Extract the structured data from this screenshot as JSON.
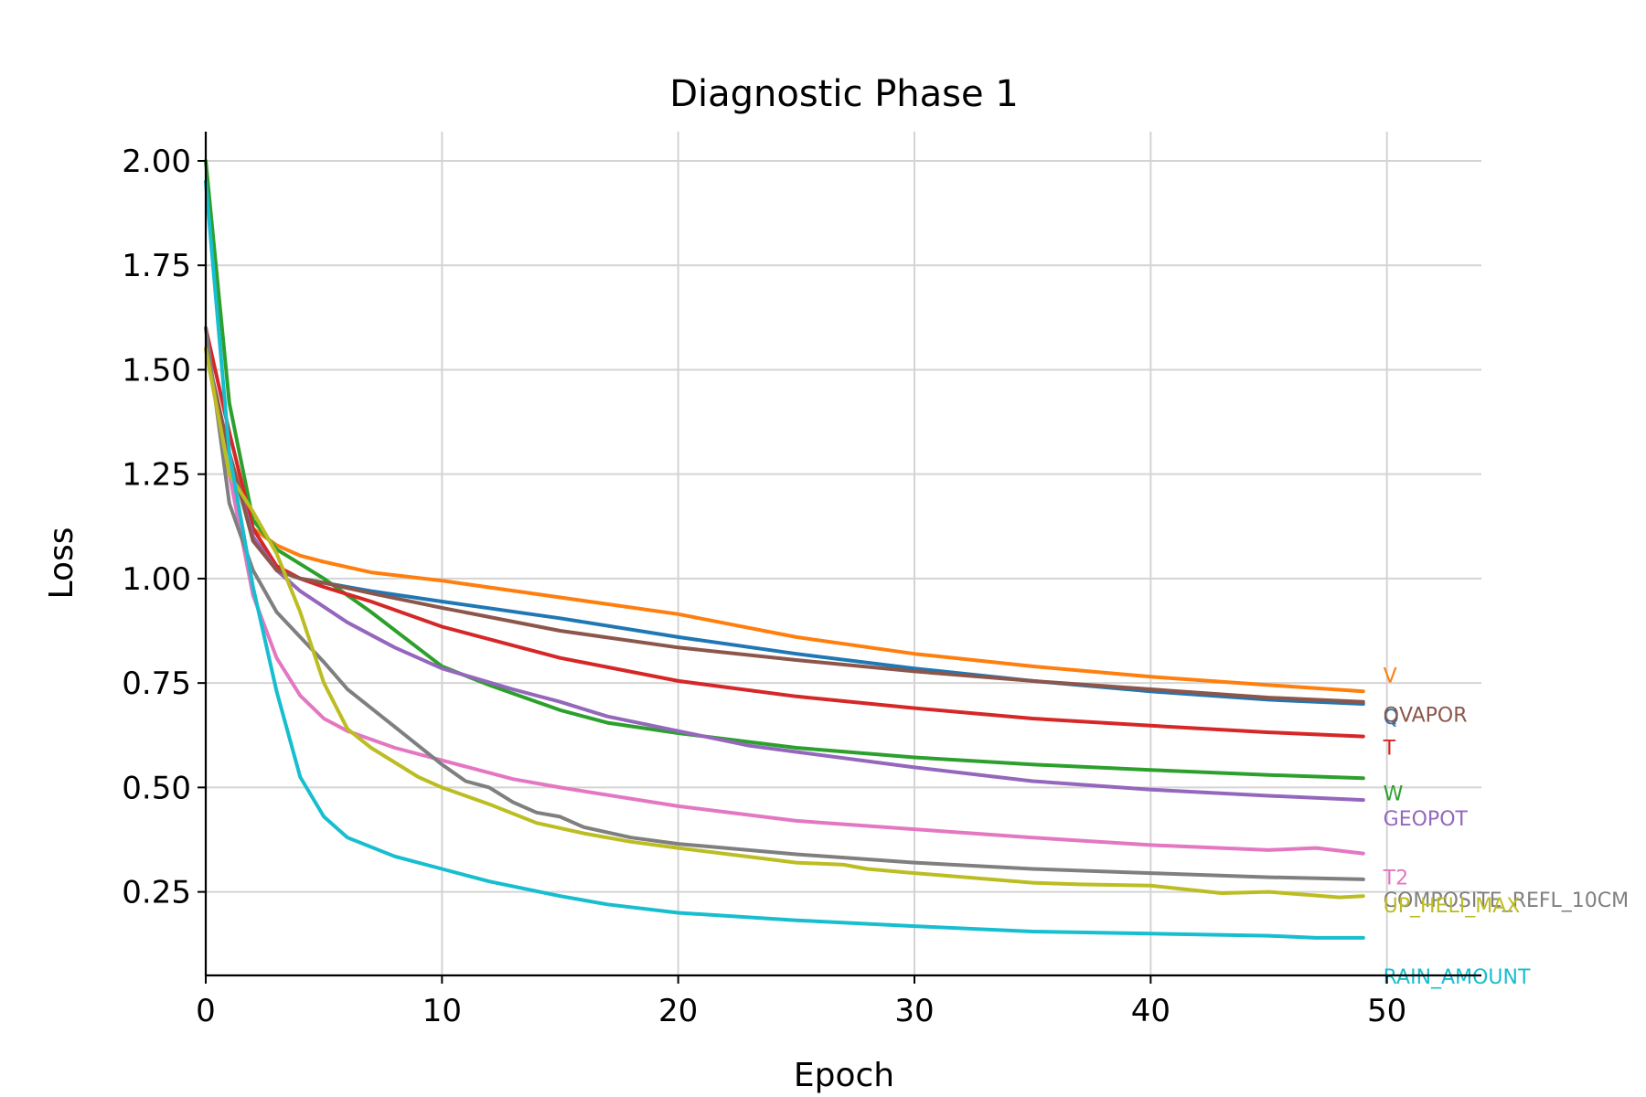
{
  "chart_data": {
    "type": "line",
    "title": "Diagnostic Phase 1",
    "xlabel": "Epoch",
    "ylabel": "Loss",
    "xlim": [
      0,
      54
    ],
    "ylim": [
      0.05,
      2.07
    ],
    "xticks": [
      0,
      10,
      20,
      30,
      40,
      50
    ],
    "xtick_labels": [
      "0",
      "10",
      "20",
      "30",
      "40",
      "50"
    ],
    "yticks": [
      0.25,
      0.5,
      0.75,
      1.0,
      1.25,
      1.5,
      1.75,
      2.0
    ],
    "ytick_labels": [
      "0.25",
      "0.50",
      "0.75",
      "1.00",
      "1.25",
      "1.50",
      "1.75",
      "2.00"
    ],
    "grid": true,
    "legend": "end-of-line labels",
    "series": [
      {
        "name": "Q",
        "color": "#1f77b4",
        "anchors": [
          [
            0,
            1.55
          ],
          [
            1,
            1.3
          ],
          [
            2,
            1.1
          ],
          [
            3,
            1.02
          ],
          [
            4,
            1.0
          ],
          [
            5,
            0.99
          ],
          [
            7,
            0.97
          ],
          [
            10,
            0.945
          ],
          [
            15,
            0.905
          ],
          [
            20,
            0.86
          ],
          [
            25,
            0.82
          ],
          [
            30,
            0.785
          ],
          [
            35,
            0.755
          ],
          [
            40,
            0.73
          ],
          [
            45,
            0.71
          ],
          [
            49,
            0.7
          ]
        ]
      },
      {
        "name": "V",
        "color": "#ff7f0e",
        "anchors": [
          [
            0,
            1.55
          ],
          [
            1,
            1.3
          ],
          [
            2,
            1.12
          ],
          [
            3,
            1.08
          ],
          [
            4,
            1.055
          ],
          [
            5,
            1.04
          ],
          [
            7,
            1.015
          ],
          [
            10,
            0.995
          ],
          [
            15,
            0.955
          ],
          [
            20,
            0.915
          ],
          [
            25,
            0.86
          ],
          [
            30,
            0.82
          ],
          [
            35,
            0.79
          ],
          [
            40,
            0.765
          ],
          [
            45,
            0.745
          ],
          [
            49,
            0.73
          ]
        ]
      },
      {
        "name": "W",
        "color": "#2ca02c",
        "anchors": [
          [
            0,
            2.0
          ],
          [
            1,
            1.42
          ],
          [
            2,
            1.14
          ],
          [
            3,
            1.07
          ],
          [
            5,
            1.0
          ],
          [
            7,
            0.92
          ],
          [
            10,
            0.79
          ],
          [
            12,
            0.745
          ],
          [
            15,
            0.685
          ],
          [
            17,
            0.655
          ],
          [
            20,
            0.63
          ],
          [
            25,
            0.595
          ],
          [
            30,
            0.572
          ],
          [
            35,
            0.555
          ],
          [
            40,
            0.542
          ],
          [
            45,
            0.53
          ],
          [
            49,
            0.522
          ]
        ]
      },
      {
        "name": "T",
        "color": "#d62728",
        "anchors": [
          [
            0,
            1.6
          ],
          [
            1,
            1.35
          ],
          [
            2,
            1.12
          ],
          [
            3,
            1.03
          ],
          [
            4,
            1.0
          ],
          [
            5,
            0.98
          ],
          [
            7,
            0.945
          ],
          [
            10,
            0.885
          ],
          [
            15,
            0.81
          ],
          [
            20,
            0.755
          ],
          [
            25,
            0.718
          ],
          [
            30,
            0.69
          ],
          [
            35,
            0.665
          ],
          [
            40,
            0.648
          ],
          [
            45,
            0.632
          ],
          [
            49,
            0.622
          ]
        ]
      },
      {
        "name": "GEOPOT",
        "color": "#9467bd",
        "anchors": [
          [
            0,
            1.55
          ],
          [
            1,
            1.3
          ],
          [
            2,
            1.1
          ],
          [
            3,
            1.02
          ],
          [
            4,
            0.97
          ],
          [
            6,
            0.895
          ],
          [
            8,
            0.835
          ],
          [
            10,
            0.785
          ],
          [
            13,
            0.735
          ],
          [
            15,
            0.705
          ],
          [
            17,
            0.67
          ],
          [
            20,
            0.635
          ],
          [
            23,
            0.6
          ],
          [
            25,
            0.585
          ],
          [
            30,
            0.548
          ],
          [
            35,
            0.515
          ],
          [
            40,
            0.495
          ],
          [
            45,
            0.48
          ],
          [
            49,
            0.47
          ]
        ]
      },
      {
        "name": "QVAPOR",
        "color": "#8c564b",
        "anchors": [
          [
            0,
            1.55
          ],
          [
            1,
            1.3
          ],
          [
            2,
            1.09
          ],
          [
            3,
            1.02
          ],
          [
            4,
            1.0
          ],
          [
            5,
            0.99
          ],
          [
            7,
            0.965
          ],
          [
            10,
            0.93
          ],
          [
            15,
            0.875
          ],
          [
            20,
            0.835
          ],
          [
            25,
            0.805
          ],
          [
            30,
            0.778
          ],
          [
            35,
            0.755
          ],
          [
            40,
            0.735
          ],
          [
            45,
            0.715
          ],
          [
            49,
            0.705
          ]
        ]
      },
      {
        "name": "T2",
        "color": "#e377c2",
        "anchors": [
          [
            0,
            1.55
          ],
          [
            1,
            1.25
          ],
          [
            2,
            0.96
          ],
          [
            3,
            0.81
          ],
          [
            4,
            0.72
          ],
          [
            5,
            0.665
          ],
          [
            6,
            0.635
          ],
          [
            8,
            0.595
          ],
          [
            10,
            0.565
          ],
          [
            13,
            0.52
          ],
          [
            15,
            0.5
          ],
          [
            20,
            0.455
          ],
          [
            25,
            0.42
          ],
          [
            30,
            0.4
          ],
          [
            35,
            0.38
          ],
          [
            40,
            0.362
          ],
          [
            45,
            0.35
          ],
          [
            47,
            0.355
          ],
          [
            49,
            0.342
          ]
        ]
      },
      {
        "name": "COMPOSITE_REFL_10CM",
        "color": "#7f7f7f",
        "anchors": [
          [
            0,
            1.6
          ],
          [
            1,
            1.18
          ],
          [
            2,
            1.02
          ],
          [
            3,
            0.92
          ],
          [
            5,
            0.8
          ],
          [
            6,
            0.735
          ],
          [
            8,
            0.645
          ],
          [
            10,
            0.555
          ],
          [
            11,
            0.515
          ],
          [
            12,
            0.5
          ],
          [
            13,
            0.465
          ],
          [
            14,
            0.44
          ],
          [
            15,
            0.43
          ],
          [
            16,
            0.405
          ],
          [
            18,
            0.38
          ],
          [
            20,
            0.365
          ],
          [
            25,
            0.34
          ],
          [
            30,
            0.32
          ],
          [
            35,
            0.305
          ],
          [
            40,
            0.295
          ],
          [
            45,
            0.285
          ],
          [
            49,
            0.28
          ]
        ]
      },
      {
        "name": "UP_HELI_MAX",
        "color": "#bcbd22",
        "anchors": [
          [
            0,
            1.55
          ],
          [
            1,
            1.25
          ],
          [
            2,
            1.16
          ],
          [
            3,
            1.06
          ],
          [
            4,
            0.92
          ],
          [
            5,
            0.75
          ],
          [
            6,
            0.64
          ],
          [
            7,
            0.595
          ],
          [
            8,
            0.56
          ],
          [
            9,
            0.525
          ],
          [
            10,
            0.5
          ],
          [
            12,
            0.46
          ],
          [
            14,
            0.415
          ],
          [
            16,
            0.39
          ],
          [
            18,
            0.37
          ],
          [
            20,
            0.355
          ],
          [
            25,
            0.32
          ],
          [
            27,
            0.315
          ],
          [
            28,
            0.305
          ],
          [
            30,
            0.295
          ],
          [
            35,
            0.272
          ],
          [
            37,
            0.268
          ],
          [
            40,
            0.265
          ],
          [
            43,
            0.247
          ],
          [
            45,
            0.25
          ],
          [
            48,
            0.237
          ],
          [
            49,
            0.24
          ]
        ]
      },
      {
        "name": "RAIN_AMOUNT",
        "color": "#17becf",
        "anchors": [
          [
            0,
            1.95
          ],
          [
            1,
            1.3
          ],
          [
            2,
            0.98
          ],
          [
            3,
            0.73
          ],
          [
            4,
            0.525
          ],
          [
            5,
            0.43
          ],
          [
            6,
            0.38
          ],
          [
            8,
            0.335
          ],
          [
            10,
            0.305
          ],
          [
            12,
            0.275
          ],
          [
            15,
            0.24
          ],
          [
            17,
            0.22
          ],
          [
            20,
            0.2
          ],
          [
            25,
            0.182
          ],
          [
            30,
            0.168
          ],
          [
            35,
            0.155
          ],
          [
            40,
            0.15
          ],
          [
            45,
            0.145
          ],
          [
            47,
            0.14
          ],
          [
            49,
            0.14
          ]
        ]
      }
    ]
  }
}
